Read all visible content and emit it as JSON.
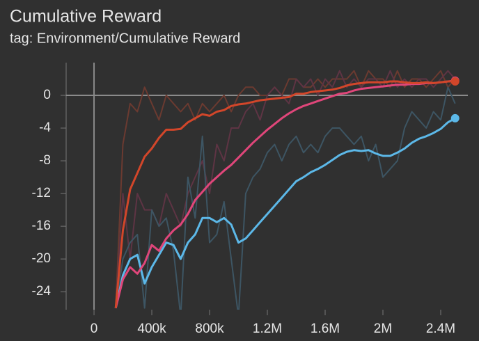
{
  "chart_data": {
    "type": "line",
    "title": "Cumulative Reward",
    "subtitle": "tag: Environment/Cumulative Reward",
    "x": [
      150000,
      200000,
      250000,
      300000,
      350000,
      400000,
      450000,
      500000,
      550000,
      600000,
      650000,
      700000,
      750000,
      800000,
      850000,
      900000,
      950000,
      1000000,
      1050000,
      1100000,
      1150000,
      1200000,
      1250000,
      1300000,
      1350000,
      1400000,
      1450000,
      1500000,
      1550000,
      1600000,
      1650000,
      1700000,
      1750000,
      1800000,
      1850000,
      1900000,
      1950000,
      2000000,
      2050000,
      2100000,
      2150000,
      2200000,
      2250000,
      2300000,
      2350000,
      2400000,
      2450000,
      2500000
    ],
    "series": [
      {
        "color": "#6b3a30",
        "values": [
          -26,
          -6,
          -1,
          -2,
          1,
          -1,
          -3,
          0,
          -1,
          -2,
          -1,
          -3,
          -1,
          -2,
          -1,
          0,
          -2,
          0,
          1,
          1,
          0,
          0,
          1,
          0,
          2,
          2,
          1,
          1,
          2,
          1,
          2,
          2,
          2,
          3,
          1,
          3,
          2,
          2,
          1,
          3,
          1,
          2,
          2,
          1,
          2,
          3,
          1,
          2
        ]
      },
      {
        "color": "#5e3444",
        "values": [
          -26,
          -12,
          -20,
          -12,
          -14,
          -14,
          -16,
          -12,
          -14,
          -16,
          -12,
          -10,
          -8,
          -12,
          -6,
          -8,
          -4,
          -4,
          -2,
          -1,
          -3,
          0,
          1,
          0,
          -1,
          2,
          1,
          2,
          0,
          2,
          1,
          3,
          1,
          2,
          1,
          2,
          2,
          1,
          3,
          1,
          2,
          1,
          2,
          2,
          1,
          2,
          3,
          2
        ]
      },
      {
        "color": "#3d5563",
        "values": [
          -26,
          -20,
          -18,
          -17,
          -26,
          -14,
          -16,
          -15,
          -19,
          -27,
          -10,
          -15,
          -5,
          -18,
          -17,
          -13,
          -20,
          -27,
          -12,
          -10,
          -9,
          -7,
          -6,
          -8,
          -6,
          -5,
          -7,
          -6,
          -7,
          -5,
          -4,
          -4,
          -5,
          -6,
          -5,
          -8,
          -6,
          -10,
          -9,
          -8,
          -4,
          -2,
          -3,
          -4,
          -2,
          -3,
          1,
          -1
        ]
      },
      {
        "color": "#5cb8e8",
        "end_dot": true,
        "values": [
          -26,
          -22,
          -20,
          -19.5,
          -23,
          -21,
          -19.5,
          -18,
          -18.3,
          -20,
          -18,
          -17,
          -15,
          -15,
          -15.5,
          -15,
          -15.8,
          -18,
          -17.5,
          -16.5,
          -15.5,
          -14.5,
          -13.5,
          -12.5,
          -11.5,
          -10.5,
          -10,
          -9.4,
          -9,
          -8.5,
          -7.9,
          -7.3,
          -6.9,
          -6.7,
          -6.8,
          -6.7,
          -7.1,
          -7.4,
          -7.4,
          -7,
          -6.5,
          -5.8,
          -5.3,
          -5,
          -4.6,
          -4.1,
          -3.3,
          -2.8
        ]
      },
      {
        "color": "#e0467a",
        "end_dot": true,
        "values": [
          -26,
          -22.5,
          -21,
          -21.8,
          -20.5,
          -18.3,
          -19,
          -17.5,
          -16.5,
          -15.8,
          -14.5,
          -12.8,
          -11.8,
          -10.8,
          -10,
          -9.2,
          -8.5,
          -7.6,
          -6.7,
          -5.8,
          -5,
          -4.2,
          -3.5,
          -2.8,
          -2.2,
          -1.7,
          -1.3,
          -1,
          -0.7,
          -0.4,
          -0.1,
          0.2,
          0.3,
          0.6,
          0.8,
          0.9,
          1,
          1.1,
          1.2,
          1.3,
          1.3,
          1.4,
          1.4,
          1.5,
          1.5,
          1.6,
          1.7,
          1.8
        ]
      },
      {
        "color": "#d2462a",
        "end_dot": true,
        "values": [
          -26,
          -16.5,
          -11.5,
          -9.5,
          -7.5,
          -6.5,
          -5.2,
          -4.2,
          -4.2,
          -4.1,
          -3.3,
          -2.8,
          -2.3,
          -2.5,
          -2,
          -1.8,
          -1.3,
          -1.1,
          -1,
          -0.8,
          -0.6,
          -0.5,
          -0.4,
          -0.3,
          -0.2,
          0.2,
          0.2,
          0.4,
          0.5,
          0.6,
          0.7,
          0.9,
          1.2,
          1.4,
          1.5,
          1.6,
          1.6,
          1.6,
          1.7,
          1.7,
          1.6,
          1.5,
          1.5,
          1.6,
          1.5,
          1.6,
          1.7,
          1.7
        ]
      }
    ],
    "xlim": [
      -193000,
      2588000
    ],
    "xticks": [
      0,
      {
        "value": 400000,
        "label": "400k"
      },
      {
        "value": 800000,
        "label": "800k"
      },
      {
        "value": 1200000,
        "label": "1.2M"
      },
      {
        "value": 1600000,
        "label": "1.6M"
      },
      {
        "value": 2000000,
        "label": "2M"
      },
      {
        "value": 2400000,
        "label": "2.4M"
      }
    ],
    "ylim": [
      -26.2,
      4
    ],
    "yticks": [
      0,
      -4,
      -8,
      -12,
      -16,
      -20,
      -24
    ]
  }
}
